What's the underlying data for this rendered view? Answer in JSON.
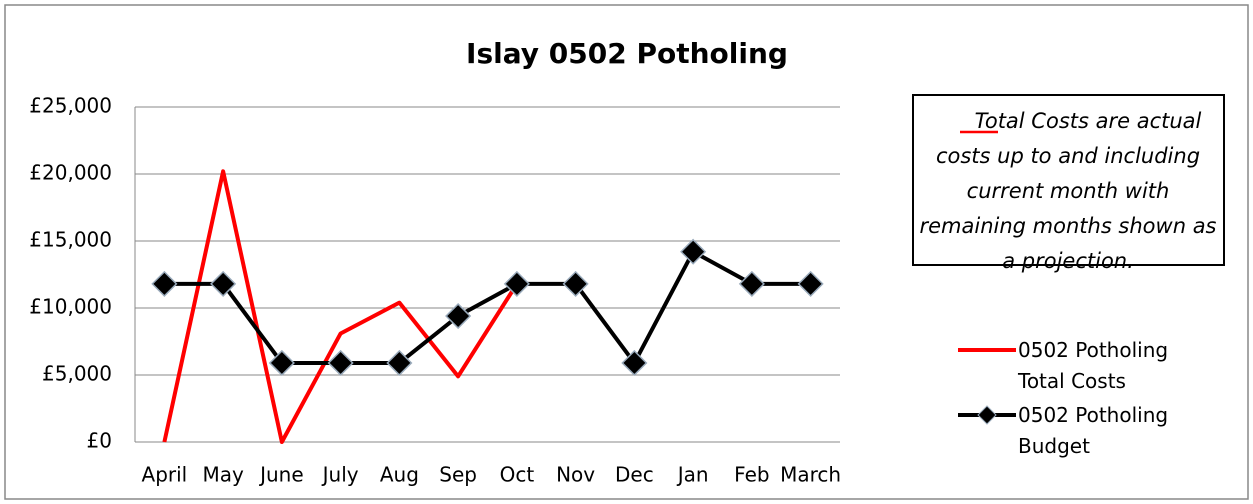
{
  "chart_data": {
    "type": "line",
    "title": "Islay 0502 Potholing",
    "categories": [
      "April",
      "May",
      "June",
      "July",
      "Aug",
      "Sep",
      "Oct",
      "Nov",
      "Dec",
      "Jan",
      "Feb",
      "March"
    ],
    "series": [
      {
        "name": "0502 Potholing Total Costs",
        "color": "#ff0000",
        "values": [
          0,
          20200,
          0,
          8100,
          10400,
          4900,
          11800,
          null,
          null,
          null,
          null,
          null
        ]
      },
      {
        "name": "0502 Potholing Budget",
        "color": "#000000",
        "marker": "diamond",
        "values": [
          11800,
          11800,
          5900,
          5900,
          5900,
          9400,
          11800,
          11800,
          5900,
          14200,
          11800,
          11800
        ]
      }
    ],
    "ylim": [
      0,
      25000
    ],
    "yticks": [
      {
        "value": 0,
        "label": "£0"
      },
      {
        "value": 5000,
        "label": "£5,000"
      },
      {
        "value": 10000,
        "label": "£10,000"
      },
      {
        "value": 15000,
        "label": "£15,000"
      },
      {
        "value": 20000,
        "label": "£20,000"
      },
      {
        "value": 25000,
        "label": "£25,000"
      }
    ],
    "grid": true,
    "annotation": "Total Costs are actual costs up to and including current month with remaining months shown as a projection."
  }
}
